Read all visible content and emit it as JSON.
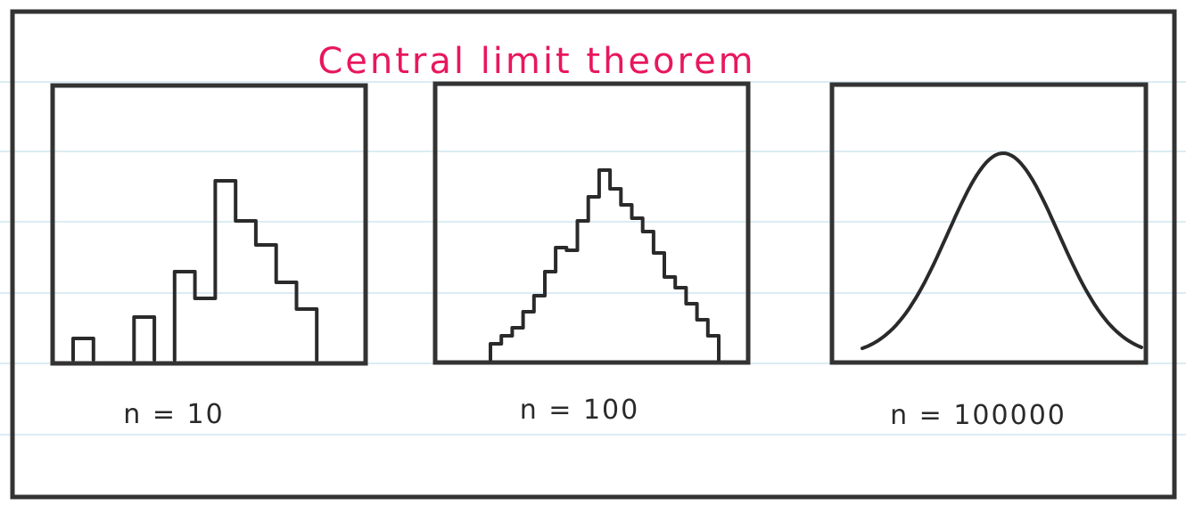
{
  "title": "Central limit theorem",
  "colors": {
    "title": "#e8175d",
    "ink": "#333333",
    "rule_lines": "#cfe6f0",
    "background": "#ffffff"
  },
  "panels": [
    {
      "caption": "n = 10",
      "description_values": {
        "shape": "stepped histogram",
        "bar_heights": [
          0.08,
          0.0,
          0.0,
          0.16,
          0.0,
          0.33,
          0.23,
          0.67,
          0.52,
          0.43,
          0.29,
          0.19,
          0.0
        ]
      }
    },
    {
      "caption": "n = 100",
      "description_values": {
        "shape": "stepped histogram",
        "bar_heights": [
          0.06,
          0.09,
          0.12,
          0.18,
          0.24,
          0.33,
          0.42,
          0.41,
          0.52,
          0.61,
          0.71,
          0.64,
          0.58,
          0.53,
          0.48,
          0.4,
          0.31,
          0.27,
          0.21,
          0.15,
          0.09
        ]
      }
    },
    {
      "caption": "n = 100000",
      "description_values": {
        "shape": "smooth bell curve"
      }
    }
  ]
}
